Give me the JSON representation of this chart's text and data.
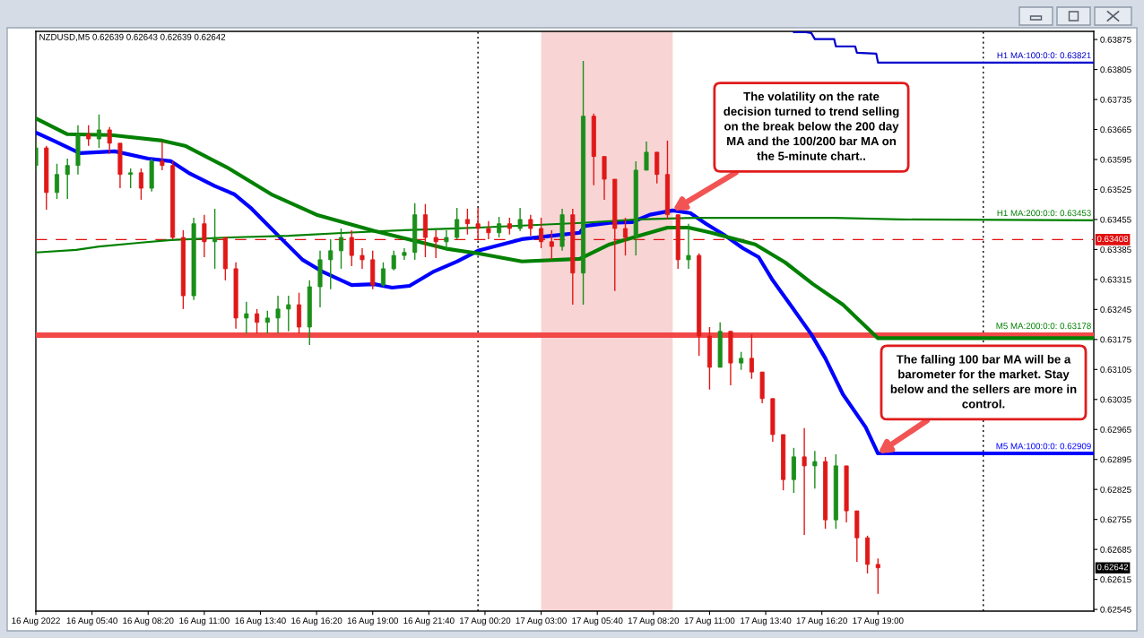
{
  "chart_data": {
    "type": "candlestick",
    "title": "NZDUSD,M5 0.62639 0.62643 0.62639 0.62642",
    "x": [
      "2022-08-16T03:00",
      "2022-08-16T03:30",
      "2022-08-16T04:00",
      "2022-08-16T04:30",
      "2022-08-16T05:00",
      "2022-08-16T05:30",
      "2022-08-16T06:00",
      "2022-08-16T06:30",
      "2022-08-16T07:00",
      "2022-08-16T07:30",
      "2022-08-16T08:00",
      "2022-08-16T08:30",
      "2022-08-16T09:00",
      "2022-08-16T09:30",
      "2022-08-16T10:00",
      "2022-08-16T10:30",
      "2022-08-16T11:00",
      "2022-08-16T11:30",
      "2022-08-16T12:00",
      "2022-08-16T12:30",
      "2022-08-16T13:00",
      "2022-08-16T13:30",
      "2022-08-16T14:00",
      "2022-08-16T14:30",
      "2022-08-16T15:00",
      "2022-08-16T15:30",
      "2022-08-16T16:00",
      "2022-08-16T16:30",
      "2022-08-16T17:00",
      "2022-08-16T17:30",
      "2022-08-16T18:00",
      "2022-08-16T18:30",
      "2022-08-16T19:00",
      "2022-08-16T19:30",
      "2022-08-16T20:00",
      "2022-08-16T20:30",
      "2022-08-16T21:00",
      "2022-08-16T21:30",
      "2022-08-16T22:00",
      "2022-08-16T22:30",
      "2022-08-16T23:00",
      "2022-08-16T23:30",
      "2022-08-17T00:00",
      "2022-08-17T00:30",
      "2022-08-17T01:00",
      "2022-08-17T01:30",
      "2022-08-17T02:00",
      "2022-08-17T02:30",
      "2022-08-17T03:00",
      "2022-08-17T03:30",
      "2022-08-17T04:00",
      "2022-08-17T04:30",
      "2022-08-17T05:00",
      "2022-08-17T05:30",
      "2022-08-17T06:00",
      "2022-08-17T06:30",
      "2022-08-17T07:00",
      "2022-08-17T07:30",
      "2022-08-17T08:00",
      "2022-08-17T08:30",
      "2022-08-17T09:00",
      "2022-08-17T09:30",
      "2022-08-17T10:00",
      "2022-08-17T10:30",
      "2022-08-17T11:00",
      "2022-08-17T11:30",
      "2022-08-17T12:00",
      "2022-08-17T12:30",
      "2022-08-17T13:00",
      "2022-08-17T13:30",
      "2022-08-17T14:00",
      "2022-08-17T14:30",
      "2022-08-17T15:00",
      "2022-08-17T15:30",
      "2022-08-17T16:00",
      "2022-08-17T16:30",
      "2022-08-17T17:00",
      "2022-08-17T17:30",
      "2022-08-17T18:00",
      "2022-08-17T18:30",
      "2022-08-17T19:00"
    ],
    "ohlc": [
      [
        0.63581,
        0.63637,
        0.6357,
        0.63622
      ],
      [
        0.63622,
        0.63627,
        0.63478,
        0.63518
      ],
      [
        0.63518,
        0.63585,
        0.63503,
        0.6356
      ],
      [
        0.6356,
        0.63597,
        0.63503,
        0.63581
      ],
      [
        0.63581,
        0.63675,
        0.6356,
        0.63654
      ],
      [
        0.63654,
        0.63675,
        0.63627,
        0.63643
      ],
      [
        0.63643,
        0.637,
        0.63622,
        0.63664
      ],
      [
        0.63664,
        0.63671,
        0.63608,
        0.63633
      ],
      [
        0.63633,
        0.63633,
        0.63528,
        0.6356
      ],
      [
        0.6356,
        0.63574,
        0.63528,
        0.63564
      ],
      [
        0.63564,
        0.63574,
        0.63501,
        0.63528
      ],
      [
        0.63528,
        0.63597,
        0.6352,
        0.63591
      ],
      [
        0.63591,
        0.63637,
        0.6357,
        0.63581
      ],
      [
        0.63581,
        0.63591,
        0.63409,
        0.63413
      ],
      [
        0.63413,
        0.6343,
        0.63246,
        0.63277
      ],
      [
        0.63277,
        0.63459,
        0.63267,
        0.63445
      ],
      [
        0.63445,
        0.63466,
        0.63367,
        0.63403
      ],
      [
        0.63403,
        0.6348,
        0.6334,
        0.63413
      ],
      [
        0.63413,
        0.63413,
        0.63313,
        0.6334
      ],
      [
        0.6334,
        0.63355,
        0.632,
        0.63225
      ],
      [
        0.63225,
        0.63263,
        0.63189,
        0.63235
      ],
      [
        0.63235,
        0.63246,
        0.63189,
        0.63215
      ],
      [
        0.63215,
        0.63242,
        0.63189,
        0.63225
      ],
      [
        0.63225,
        0.63277,
        0.63189,
        0.63246
      ],
      [
        0.63246,
        0.63277,
        0.63194,
        0.63256
      ],
      [
        0.63256,
        0.63284,
        0.63189,
        0.63204
      ],
      [
        0.63204,
        0.63313,
        0.63162,
        0.63298
      ],
      [
        0.63298,
        0.63382,
        0.6325,
        0.63361
      ],
      [
        0.63361,
        0.63409,
        0.63292,
        0.63382
      ],
      [
        0.63382,
        0.63434,
        0.6334,
        0.63413
      ],
      [
        0.63413,
        0.6343,
        0.63346,
        0.63371
      ],
      [
        0.63371,
        0.63388,
        0.6334,
        0.63361
      ],
      [
        0.63361,
        0.63382,
        0.63292,
        0.63302
      ],
      [
        0.63302,
        0.63355,
        0.63298,
        0.6334
      ],
      [
        0.6334,
        0.63382,
        0.63336,
        0.63371
      ],
      [
        0.63371,
        0.63388,
        0.63361,
        0.63378
      ],
      [
        0.63378,
        0.63493,
        0.63361,
        0.63466
      ],
      [
        0.63466,
        0.63491,
        0.63367,
        0.63413
      ],
      [
        0.63413,
        0.6343,
        0.63365,
        0.63403
      ],
      [
        0.63403,
        0.6343,
        0.63382,
        0.63413
      ],
      [
        0.63413,
        0.63482,
        0.63409,
        0.63455
      ],
      [
        0.63455,
        0.6348,
        0.6342,
        0.63445
      ],
      [
        0.63445,
        0.63482,
        0.63409,
        0.63434
      ],
      [
        0.63434,
        0.63451,
        0.63409,
        0.63424
      ],
      [
        0.63424,
        0.63461,
        0.63413,
        0.63445
      ],
      [
        0.63445,
        0.63459,
        0.6342,
        0.63434
      ],
      [
        0.63434,
        0.63482,
        0.63428,
        0.63455
      ],
      [
        0.63455,
        0.63466,
        0.63417,
        0.63434
      ],
      [
        0.63434,
        0.63459,
        0.63388,
        0.63403
      ],
      [
        0.63403,
        0.6343,
        0.63361,
        0.63392
      ],
      [
        0.63392,
        0.6348,
        0.63382,
        0.63466
      ],
      [
        0.63466,
        0.6348,
        0.63256,
        0.6333
      ],
      [
        0.6333,
        0.63825,
        0.63256,
        0.63696
      ],
      [
        0.63696,
        0.63702,
        0.63535,
        0.63602
      ],
      [
        0.63602,
        0.63602,
        0.63501,
        0.63549
      ],
      [
        0.63549,
        0.63549,
        0.63288,
        0.63434
      ],
      [
        0.63434,
        0.63459,
        0.63371,
        0.63413
      ],
      [
        0.63413,
        0.63591,
        0.63371,
        0.6357
      ],
      [
        0.6357,
        0.63637,
        0.6357,
        0.63612
      ],
      [
        0.63612,
        0.63612,
        0.63539,
        0.6356
      ],
      [
        0.6356,
        0.63639,
        0.63455,
        0.63466
      ],
      [
        0.63466,
        0.63466,
        0.6334,
        0.63361
      ],
      [
        0.63361,
        0.63445,
        0.6334,
        0.63371
      ],
      [
        0.63371,
        0.63376,
        0.63137,
        0.63183
      ],
      [
        0.63183,
        0.63204,
        0.63058,
        0.6311
      ],
      [
        0.6311,
        0.63215,
        0.6311,
        0.63194
      ],
      [
        0.63194,
        0.63194,
        0.63068,
        0.6312
      ],
      [
        0.6312,
        0.63146,
        0.63104,
        0.63131
      ],
      [
        0.63131,
        0.63187,
        0.63083,
        0.63099
      ],
      [
        0.63099,
        0.63099,
        0.63026,
        0.63037
      ],
      [
        0.63037,
        0.63037,
        0.62936,
        0.62953
      ],
      [
        0.62953,
        0.62953,
        0.62823,
        0.62848
      ],
      [
        0.62848,
        0.62922,
        0.62817,
        0.62901
      ],
      [
        0.62901,
        0.62968,
        0.62719,
        0.6288
      ],
      [
        0.6288,
        0.62915,
        0.62827,
        0.6289
      ],
      [
        0.6289,
        0.62901,
        0.62733,
        0.62754
      ],
      [
        0.62754,
        0.62907,
        0.62733,
        0.6288
      ],
      [
        0.6288,
        0.6288,
        0.62748,
        0.62775
      ],
      [
        0.62775,
        0.62775,
        0.62656,
        0.62712
      ],
      [
        0.62712,
        0.62717,
        0.62629,
        0.6265
      ],
      [
        0.6265,
        0.62664,
        0.62581,
        0.62642
      ]
    ],
    "colors": [
      "#1a8f1a",
      "#e01818",
      "#1a8f1a",
      "#1a8f1a",
      "#1a8f1a",
      "#e01818",
      "#1a8f1a",
      "#e01818",
      "#e01818",
      "#1a8f1a",
      "#e01818",
      "#1a8f1a",
      "#e01818",
      "#e01818",
      "#e01818",
      "#1a8f1a",
      "#e01818",
      "#1a8f1a",
      "#e01818",
      "#e01818",
      "#1a8f1a",
      "#e01818",
      "#1a8f1a",
      "#1a8f1a",
      "#1a8f1a",
      "#e01818",
      "#1a8f1a",
      "#1a8f1a",
      "#1a8f1a",
      "#1a8f1a",
      "#e01818",
      "#e01818",
      "#e01818",
      "#1a8f1a",
      "#1a8f1a",
      "#1a8f1a",
      "#1a8f1a",
      "#e01818",
      "#e01818",
      "#1a8f1a",
      "#1a8f1a",
      "#e01818",
      "#e01818",
      "#e01818",
      "#1a8f1a",
      "#e01818",
      "#1a8f1a",
      "#e01818",
      "#e01818",
      "#e01818",
      "#1a8f1a",
      "#e01818",
      "#1a8f1a",
      "#e01818",
      "#e01818",
      "#e01818",
      "#e01818",
      "#1a8f1a",
      "#1a8f1a",
      "#e01818",
      "#e01818",
      "#e01818",
      "#1a8f1a",
      "#e01818",
      "#e01818",
      "#1a8f1a",
      "#e01818",
      "#1a8f1a",
      "#e01818",
      "#e01818",
      "#e01818",
      "#e01818",
      "#1a8f1a",
      "#e01818",
      "#1a8f1a",
      "#e01818",
      "#1a8f1a",
      "#e01818",
      "#e01818",
      "#e01818",
      "#e01818"
    ],
    "series": [
      {
        "type": "line",
        "name": "M5 MA:100:0:0: 0.62909",
        "color": "#0000ff",
        "x": [
          "2022-08-16T03:00",
          "2022-08-16T03:50",
          "2022-08-16T05:05",
          "2022-08-16T06:45",
          "2022-08-16T08:20",
          "2022-08-16T09:25",
          "2022-08-16T10:15",
          "2022-08-16T11:30",
          "2022-08-16T12:25",
          "2022-08-16T13:15",
          "2022-08-16T14:30",
          "2022-08-16T15:40",
          "2022-08-16T16:35",
          "2022-08-16T18:00",
          "2022-08-16T19:05",
          "2022-08-16T19:55",
          "2022-08-16T20:45",
          "2022-08-16T21:55",
          "2022-08-16T23:00",
          "2022-08-17T00:00",
          "2022-08-17T02:05",
          "2022-08-17T03:30",
          "2022-08-17T04:50",
          "2022-08-17T05:05",
          "2022-08-17T06:15",
          "2022-08-17T07:20",
          "2022-08-17T08:10",
          "2022-08-17T09:15",
          "2022-08-17T10:05",
          "2022-08-17T10:50",
          "2022-08-17T11:45",
          "2022-08-17T12:35",
          "2022-08-17T13:20",
          "2022-08-17T14:00",
          "2022-08-17T14:50",
          "2022-08-17T15:50",
          "2022-08-17T16:30",
          "2022-08-17T17:20",
          "2022-08-17T18:25",
          "2022-08-17T19:00",
          "2022-08-18T05:15"
        ],
        "values": [
          0.63658,
          0.63639,
          0.6361,
          0.63614,
          0.63597,
          0.63591,
          0.63564,
          0.63533,
          0.63514,
          0.6348,
          0.63418,
          0.63361,
          0.63334,
          0.63302,
          0.63304,
          0.63296,
          0.633,
          0.63334,
          0.63357,
          0.63382,
          0.63409,
          0.63417,
          0.63424,
          0.6344,
          0.63447,
          0.63449,
          0.63466,
          0.63476,
          0.6347,
          0.63445,
          0.63417,
          0.63388,
          0.63367,
          0.63313,
          0.63256,
          0.63187,
          0.63131,
          0.63047,
          0.6297,
          0.62909,
          0.62909
        ]
      },
      {
        "type": "line",
        "name": "M5 MA:200:0:0: 0.63178",
        "color": "#008000",
        "x": [
          "2022-08-16T03:00",
          "2022-08-16T04:30",
          "2022-08-16T06:35",
          "2022-08-16T09:00",
          "2022-08-16T10:05",
          "2022-08-16T12:10",
          "2022-08-16T14:15",
          "2022-08-16T16:20",
          "2022-08-16T19:05",
          "2022-08-16T21:10",
          "2022-08-16T22:35",
          "2022-08-17T00:00",
          "2022-08-17T02:05",
          "2022-08-17T04:50",
          "2022-08-17T06:15",
          "2022-08-17T07:40",
          "2022-08-17T09:00",
          "2022-08-17T10:00",
          "2022-08-17T11:05",
          "2022-08-17T13:10",
          "2022-08-17T14:35",
          "2022-08-17T15:55",
          "2022-08-17T17:20",
          "2022-08-17T19:00",
          "2022-08-18T05:15"
        ],
        "values": [
          0.63691,
          0.63654,
          0.63652,
          0.63639,
          0.63627,
          0.63574,
          0.63512,
          0.63466,
          0.63428,
          0.63403,
          0.63386,
          0.63376,
          0.63357,
          0.63363,
          0.63397,
          0.63417,
          0.63436,
          0.63436,
          0.63424,
          0.63397,
          0.63355,
          0.63304,
          0.63256,
          0.63178,
          0.63178
        ]
      },
      {
        "type": "line",
        "name": "H1 MA:200:0:0: 0.63453",
        "color": "#008000",
        "x": [
          "2022-08-16T03:00",
          "2022-08-16T04:55",
          "2022-08-16T06:00",
          "2022-08-16T08:00",
          "2022-08-16T09:25",
          "2022-08-16T12:10",
          "2022-08-16T15:00",
          "2022-08-16T17:45",
          "2022-08-16T20:30",
          "2022-08-17T00:00",
          "2022-08-17T04:55",
          "2022-08-17T07:35",
          "2022-08-17T10:25",
          "2022-08-17T16:55",
          "2022-08-17T20:05",
          "2022-08-18T05:15"
        ],
        "values": [
          0.63378,
          0.63384,
          0.63392,
          0.63401,
          0.63407,
          0.63413,
          0.63417,
          0.63424,
          0.6343,
          0.63436,
          0.63447,
          0.63455,
          0.63459,
          0.63459,
          0.63455,
          0.63453
        ]
      },
      {
        "type": "line",
        "name": "H1 MA:100:0:0: 0.63821",
        "color": "#0000cc",
        "x": [
          "2022-08-17T15:00",
          "2022-08-17T15:35",
          "2022-08-17T15:50",
          "2022-08-17T16:00",
          "2022-08-17T16:55",
          "2022-08-17T17:00",
          "2022-08-17T17:55",
          "2022-08-17T18:00",
          "2022-08-17T18:55",
          "2022-08-17T19:00",
          "2022-08-18T05:15"
        ],
        "values": [
          0.63892,
          0.63892,
          0.6389,
          0.63876,
          0.63876,
          0.63859,
          0.63859,
          0.63844,
          0.63842,
          0.63821,
          0.63821
        ]
      }
    ],
    "xlim": [
      "2022-08-16T03:00",
      "2022-08-18T05:15"
    ],
    "xticks": [
      {
        "value": "2022-08-16T03:00",
        "label": "16 Aug 2022"
      },
      {
        "value": "2022-08-16T05:40",
        "label": "16 Aug 05:40"
      },
      {
        "value": "2022-08-16T08:20",
        "label": "16 Aug 08:20"
      },
      {
        "value": "2022-08-16T11:00",
        "label": "16 Aug 11:00"
      },
      {
        "value": "2022-08-16T13:40",
        "label": "16 Aug 13:40"
      },
      {
        "value": "2022-08-16T16:20",
        "label": "16 Aug 16:20"
      },
      {
        "value": "2022-08-16T19:00",
        "label": "16 Aug 19:00"
      },
      {
        "value": "2022-08-16T21:40",
        "label": "16 Aug 21:40"
      },
      {
        "value": "2022-08-17T00:20",
        "label": "17 Aug 00:20"
      },
      {
        "value": "2022-08-17T03:00",
        "label": "17 Aug 03:00"
      },
      {
        "value": "2022-08-17T05:40",
        "label": "17 Aug 05:40"
      },
      {
        "value": "2022-08-17T08:20",
        "label": "17 Aug 08:20"
      },
      {
        "value": "2022-08-17T11:00",
        "label": "17 Aug 11:00"
      },
      {
        "value": "2022-08-17T13:40",
        "label": "17 Aug 13:40"
      },
      {
        "value": "2022-08-17T16:20",
        "label": "17 Aug 16:20"
      },
      {
        "value": "2022-08-17T19:00",
        "label": "17 Aug 19:00"
      }
    ],
    "ylim": [
      0.62541,
      0.63894
    ],
    "yticks": [
      0.62545,
      0.62615,
      0.62685,
      0.62755,
      0.62825,
      0.62895,
      0.62965,
      0.63035,
      0.63105,
      0.63175,
      0.63245,
      0.63315,
      0.63385,
      0.63455,
      0.63525,
      0.63595,
      0.63665,
      0.63735,
      0.63805,
      0.63875
    ],
    "ref_lines": [
      {
        "axis": "y",
        "value": 0.63185,
        "color": "#f24848",
        "line_style": "solid"
      },
      {
        "axis": "y",
        "value": 0.63408,
        "label": "0.63408",
        "color": "#e01010",
        "line_style": "dashed"
      },
      {
        "axis": "x",
        "value": "2022-08-17T00:00",
        "color": "#000000",
        "line_style": "dotted"
      },
      {
        "axis": "x",
        "value": "2022-08-18T00:00",
        "color": "#000000",
        "line_style": "dotted"
      }
    ],
    "bands": [
      {
        "axis": "x",
        "from": "2022-08-17T03:00",
        "to": "2022-08-17T09:15",
        "color": "#f8d4d4"
      }
    ],
    "annotations": [
      {
        "text": "The volatility on the rate decision turned to trend selling on the break below the 200 day MA and the 100/200 bar MA on the 5-minute chart..",
        "x": "2022-08-17T09:15",
        "y": 0.63476
      },
      {
        "text": "The falling 100 bar MA will be a barometer for the market. Stay below and the sellers are more in control.",
        "x": "2022-08-17T19:00",
        "y": 0.62909
      },
      {
        "text": "0.62642",
        "y": 0.62642
      }
    ]
  }
}
